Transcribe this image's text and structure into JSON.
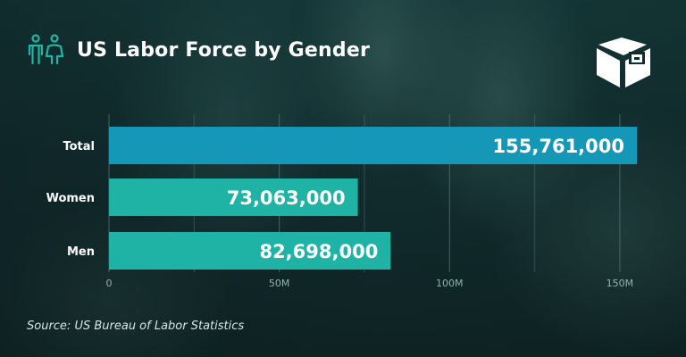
{
  "header": {
    "title": "US Labor Force by Gender",
    "icon": "people-icon"
  },
  "logo": {
    "icon": "book-stack-logo"
  },
  "source": "Source: US Bureau of Labor Statistics",
  "colors": {
    "bar_total": "#1597b8",
    "bar_gender": "#1fb3a6",
    "gridline": "#5d7d7b",
    "icon_teal": "#20b5a6"
  },
  "chart_data": {
    "type": "bar",
    "orientation": "horizontal",
    "categories": [
      "Total",
      "Women",
      "Men"
    ],
    "values": [
      155761000,
      73063000,
      82698000
    ],
    "value_labels": [
      "155,761,000",
      "73,063,000",
      "82,698,000"
    ],
    "xlim": [
      0,
      155000000
    ],
    "xticks": [
      0,
      50000000,
      100000000,
      150000000
    ],
    "xtick_labels": [
      "0",
      "50M",
      "100M",
      "150M"
    ],
    "grid": true,
    "title": "US Labor Force by Gender"
  }
}
